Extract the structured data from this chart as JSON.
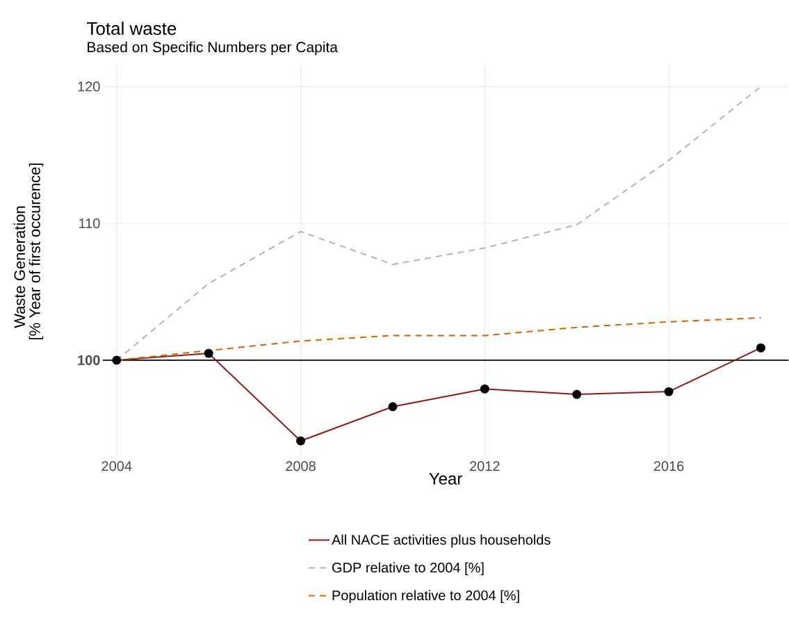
{
  "chart_data": {
    "type": "line",
    "title": "Total waste",
    "subtitle": "Based on Specific Numbers per Capita",
    "xlabel": "Year",
    "ylabel": "Waste Generation",
    "annotations": [
      "[% Year of first occurence]"
    ],
    "x": [
      2004,
      2006,
      2008,
      2010,
      2012,
      2014,
      2016,
      2018
    ],
    "series": [
      {
        "name": "All NACE activities plus households",
        "color": "#8b1a1a",
        "values": [
          100,
          100.5,
          94.1,
          96.6,
          97.9,
          97.5,
          97.7,
          100.9
        ],
        "marker": "circle",
        "line_style": "solid"
      },
      {
        "name": "GDP relative to 2004 [%]",
        "color": "#b3b3b3",
        "values": [
          100,
          105.6,
          109.4,
          107.0,
          108.2,
          109.9,
          114.6,
          120.0
        ],
        "marker": "none",
        "line_style": "dashed"
      },
      {
        "name": "Population relative to 2004 [%]",
        "color": "#cd6600",
        "values": [
          100,
          100.7,
          101.4,
          101.8,
          101.8,
          102.4,
          102.8,
          103.1
        ],
        "marker": "none",
        "line_style": "dashed"
      }
    ],
    "xlim": [
      2003.7,
      2018.6
    ],
    "ylim": [
      92.8,
      121.6
    ],
    "xticks": [
      2004,
      2008,
      2012,
      2016
    ],
    "yticks": [
      {
        "value": 100,
        "label": "**100**"
      },
      110,
      120
    ],
    "ref_lines": [
      {
        "axis": "y",
        "value": 100,
        "color": "#000000"
      }
    ],
    "grid": true,
    "legend": "bottom"
  }
}
